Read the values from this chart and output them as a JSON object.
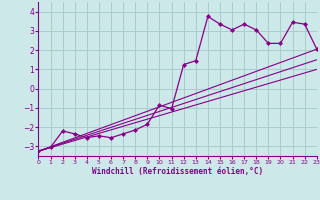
{
  "bg_color": "#cce8e8",
  "grid_color": "#aacccc",
  "line_color": "#880088",
  "marker_color": "#880088",
  "xlabel": "Windchill (Refroidissement éolien,°C)",
  "xlim": [
    0,
    23
  ],
  "ylim": [
    -3.5,
    4.5
  ],
  "yticks": [
    -3,
    -2,
    -1,
    0,
    1,
    2,
    3,
    4
  ],
  "xticks": [
    0,
    1,
    2,
    3,
    4,
    5,
    6,
    7,
    8,
    9,
    10,
    11,
    12,
    13,
    14,
    15,
    16,
    17,
    18,
    19,
    20,
    21,
    22,
    23
  ],
  "series_main": {
    "x": [
      0,
      1,
      2,
      3,
      4,
      5,
      6,
      7,
      8,
      9,
      10,
      11,
      12,
      13,
      14,
      15,
      16,
      17,
      18,
      19,
      20,
      21,
      22,
      23
    ],
    "y": [
      -3.25,
      -3.05,
      -2.2,
      -2.35,
      -2.55,
      -2.45,
      -2.55,
      -2.35,
      -2.15,
      -1.85,
      -0.85,
      -1.05,
      1.25,
      1.45,
      3.75,
      3.35,
      3.05,
      3.35,
      3.05,
      2.35,
      2.35,
      3.45,
      3.35,
      2.05
    ]
  },
  "series_lines": [
    {
      "x": [
        0,
        23
      ],
      "y": [
        -3.25,
        2.05
      ]
    },
    {
      "x": [
        0,
        23
      ],
      "y": [
        -3.25,
        1.5
      ]
    },
    {
      "x": [
        0,
        23
      ],
      "y": [
        -3.25,
        1.0
      ]
    }
  ]
}
